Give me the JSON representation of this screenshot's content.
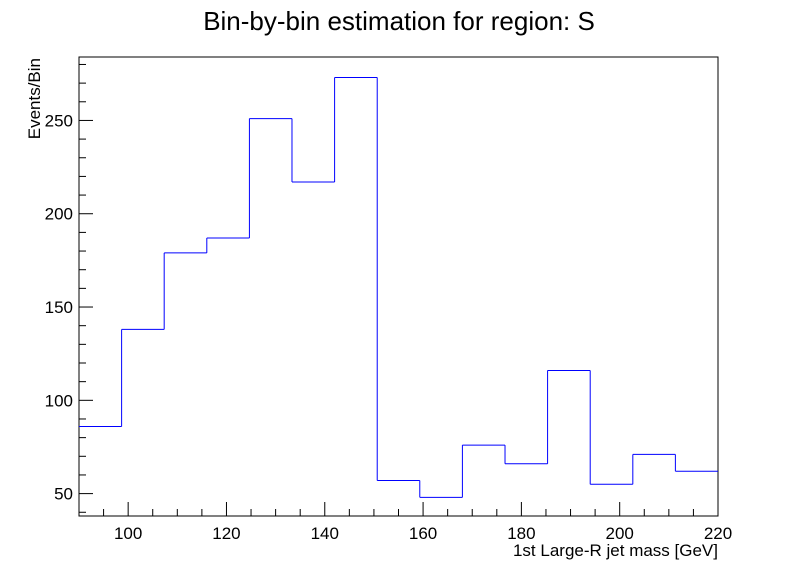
{
  "chart_data": {
    "type": "histogram",
    "title": "Bin-by-bin estimation for region: S",
    "xlabel": "1st Large-R jet mass [GeV]",
    "ylabel": "Events/Bin",
    "xlim": [
      90,
      220
    ],
    "ylim": [
      38,
      284
    ],
    "x_ticks": [
      100,
      120,
      140,
      160,
      180,
      200,
      220
    ],
    "y_ticks": [
      50,
      100,
      150,
      200,
      250
    ],
    "bin_edges": [
      90,
      98.67,
      107.33,
      116,
      124.67,
      133.33,
      142,
      150.67,
      159.33,
      168,
      176.67,
      185.33,
      194,
      202.67,
      211.33,
      220
    ],
    "values": [
      86,
      138,
      179,
      187,
      251,
      217,
      273,
      57,
      48,
      76,
      66,
      116,
      55,
      71,
      62
    ],
    "line_color": "#0000ff",
    "grid": false,
    "legend": false
  }
}
